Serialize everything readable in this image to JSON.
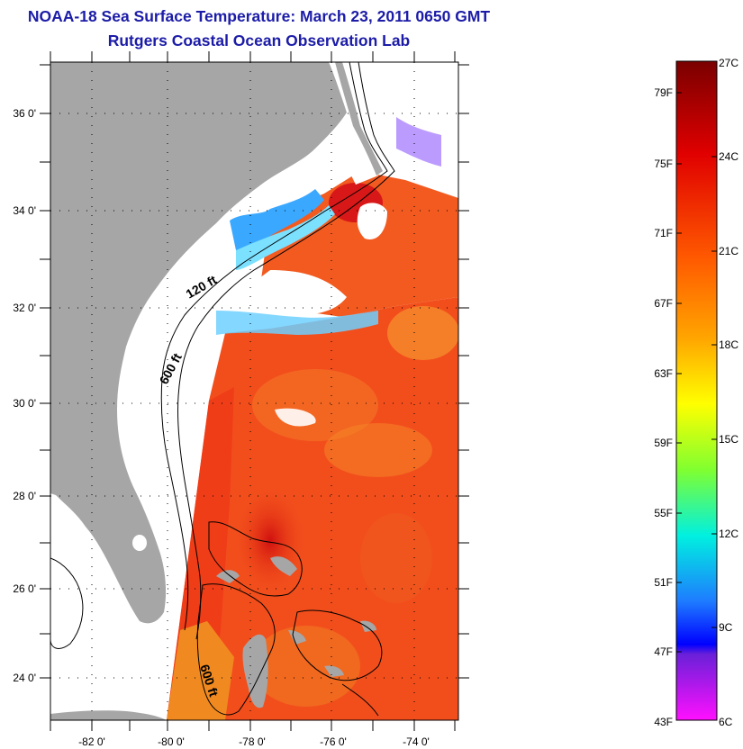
{
  "title": "NOAA-18 Sea Surface Temperature:  March 23, 2011 0650 GMT",
  "subtitle": "Rutgers Coastal Ocean Observation Lab",
  "map": {
    "lat_labels": [
      "36 0'",
      "34 0'",
      "32 0'",
      "30 0'",
      "28 0'",
      "26 0'",
      "24 0'"
    ],
    "lon_labels": [
      "-82 0'",
      "-80 0'",
      "-78 0'",
      "-76 0'",
      "-74 0'"
    ],
    "contour_labels": [
      "120 ft",
      "600 ft",
      "600 ft"
    ],
    "colors": {
      "land": "#a6a6a6",
      "cloud": "#ffffff",
      "warm_water": "#f24e1c",
      "frame": "#000000"
    }
  },
  "colorbar": {
    "fahrenheit_labels": [
      "79F",
      "75F",
      "71F",
      "67F",
      "63F",
      "59F",
      "55F",
      "51F",
      "47F",
      "43F"
    ],
    "celsius_labels": [
      "27C",
      "24C",
      "21C",
      "18C",
      "15C",
      "12C",
      "9C",
      "6C"
    ],
    "range_celsius": [
      6,
      27
    ],
    "gradient_stops": [
      "#8b0000",
      "#e60000",
      "#ff4500",
      "#ff8c00",
      "#ffff00",
      "#7cfc00",
      "#00e5e5",
      "#1e90ff",
      "#0000ff",
      "#7b00ff",
      "#ff00ff"
    ]
  }
}
